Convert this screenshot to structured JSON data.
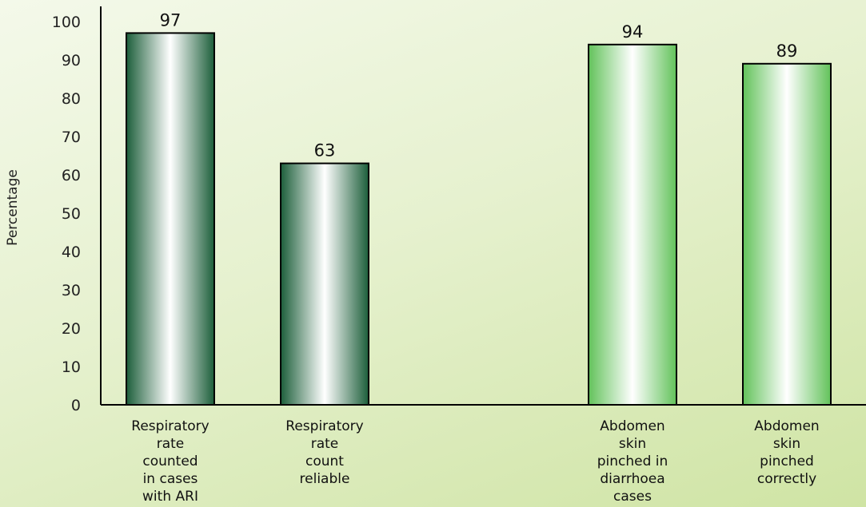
{
  "chart_data": {
    "type": "bar",
    "ylabel": "Percentage",
    "xlabel": "",
    "ylim": [
      0,
      100
    ],
    "yticks": [
      0,
      10,
      20,
      30,
      40,
      50,
      60,
      70,
      80,
      90,
      100
    ],
    "grid": false,
    "categories": [
      "Respiratory rate counted in cases with ARI",
      "Respiratory rate count reliable",
      "Abdomen skin pinched in diarrhoea cases",
      "Abdomen skin pinched correctly"
    ],
    "category_lines": [
      [
        "Respiratory",
        "rate",
        "counted",
        "in cases",
        "with ARI"
      ],
      [
        "Respiratory",
        "rate",
        "count",
        "reliable"
      ],
      [
        "Abdomen",
        "skin",
        "pinched in",
        "diarrhoea",
        "cases"
      ],
      [
        "Abdomen",
        "skin",
        "pinched",
        "correctly"
      ]
    ],
    "values": [
      97,
      63,
      94,
      89
    ],
    "data_labels": [
      "97",
      "63",
      "94",
      "89"
    ],
    "bar_colors": [
      "#1c5e3a",
      "#1c5e3a",
      "#62c25a",
      "#62c25a"
    ]
  }
}
